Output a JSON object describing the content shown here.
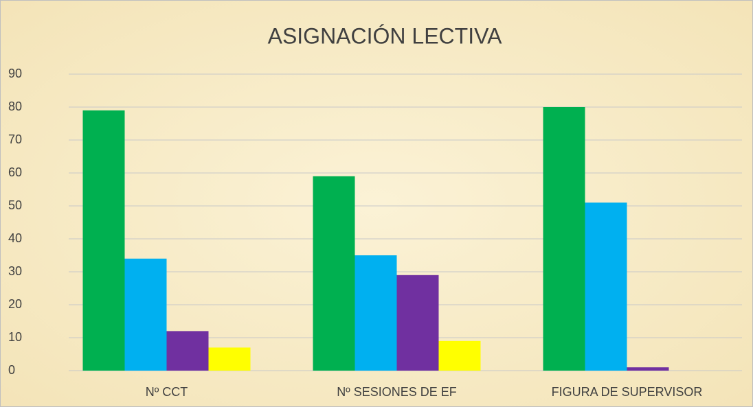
{
  "chart_data": {
    "type": "bar",
    "title": "ASIGNACIÓN LECTIVA",
    "categories": [
      "Nº CCT",
      "Nº SESIONES DE EF",
      "FIGURA DE SUPERVISOR"
    ],
    "series": [
      {
        "color": "#00b050",
        "values": [
          79,
          59,
          80
        ]
      },
      {
        "color": "#00b0f0",
        "values": [
          34,
          35,
          51
        ]
      },
      {
        "color": "#7030a0",
        "values": [
          12,
          29,
          1
        ]
      },
      {
        "color": "#ffff00",
        "values": [
          7,
          9,
          0
        ]
      }
    ],
    "ylim": [
      0,
      90
    ],
    "yticks": [
      0,
      10,
      20,
      30,
      40,
      50,
      60,
      70,
      80,
      90
    ],
    "grid": true
  }
}
